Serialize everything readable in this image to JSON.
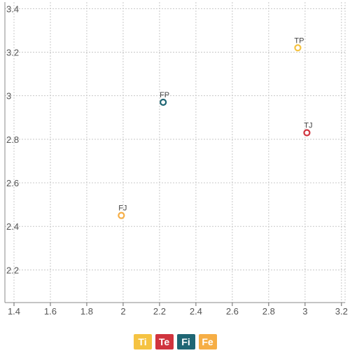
{
  "chart_data": {
    "type": "scatter",
    "title": "",
    "xlabel": "",
    "ylabel": "",
    "xlim": [
      1.35,
      3.22
    ],
    "ylim": [
      2.05,
      3.43
    ],
    "x_ticks": [
      "1.4",
      "1.6",
      "1.8",
      "2",
      "2.2",
      "2.4",
      "2.6",
      "2.8",
      "3",
      "3.2"
    ],
    "y_ticks": [
      "2.2",
      "2.4",
      "2.6",
      "2.8",
      "3",
      "3.2",
      "3.4"
    ],
    "grid": true,
    "legend_position": "bottom-center",
    "points": [
      {
        "label": "TP",
        "x": 2.96,
        "y": 3.22,
        "color": "#F5C342"
      },
      {
        "label": "FP",
        "x": 2.22,
        "y": 2.97,
        "color": "#1F6674"
      },
      {
        "label": "TJ",
        "x": 3.01,
        "y": 2.83,
        "color": "#D0343E"
      },
      {
        "label": "FJ",
        "x": 1.99,
        "y": 2.45,
        "color": "#F6AE45"
      }
    ]
  },
  "legend": [
    {
      "label": "Ti",
      "color": "#F5C342"
    },
    {
      "label": "Te",
      "color": "#D0343E"
    },
    {
      "label": "Fi",
      "color": "#1F6674"
    },
    {
      "label": "Fe",
      "color": "#F6AE45"
    }
  ]
}
